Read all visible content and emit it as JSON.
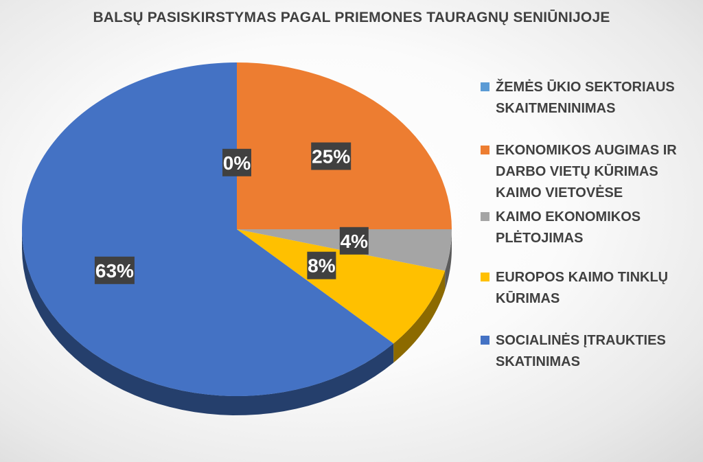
{
  "chart_data": {
    "type": "pie",
    "title": "BALSŲ PASISKIRSTYMAS PAGAL PRIEMONES TAURAGNŲ SENIŪNIJOJE",
    "slices": [
      {
        "label": "ŽEMĖS ŪKIO SEKTORIAUS SKAITMENINIMAS",
        "value": 0,
        "display": "0%",
        "color": "#5B9BD5"
      },
      {
        "label": "EKONOMIKOS AUGIMAS IR DARBO VIETŲ KŪRIMAS KAIMO VIETOVĖSE",
        "value": 25,
        "display": "25%",
        "color": "#ED7D31"
      },
      {
        "label": "KAIMO EKONOMIKOS PLĖTOJIMAS",
        "value": 4,
        "display": "4%",
        "color": "#A5A5A5"
      },
      {
        "label": "EUROPOS KAIMO TINKLŲ KŪRIMAS",
        "value": 8,
        "display": "8%",
        "color": "#FFC000"
      },
      {
        "label": "SOCIALINĖS ĮTRAUKTIES SKATINIMAS",
        "value": 63,
        "display": "63%",
        "color": "#4472C4"
      }
    ],
    "legend_position": "right",
    "style": "3d-pie"
  }
}
